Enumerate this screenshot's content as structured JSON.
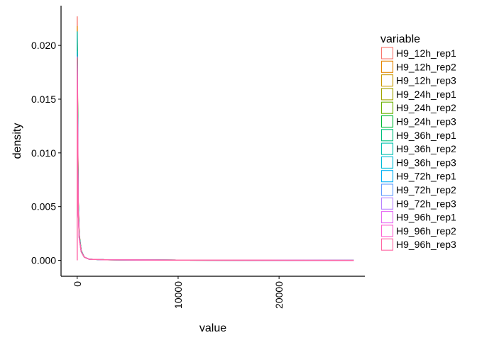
{
  "chart_data": {
    "type": "line",
    "title": "",
    "xlabel": "value",
    "ylabel": "density",
    "xlim": [
      -1600,
      28500
    ],
    "ylim": [
      -0.00148,
      0.0237
    ],
    "x_ticks": [
      0,
      10000,
      20000
    ],
    "x_tick_labels": [
      "0",
      "10000",
      "20000"
    ],
    "y_ticks": [
      0.0,
      0.005,
      0.01,
      0.015,
      0.02
    ],
    "y_tick_labels": [
      "0.000",
      "0.005",
      "0.010",
      "0.015",
      "0.020"
    ],
    "grid": false,
    "legend_position": "right",
    "legend_title": "variable",
    "series": [
      {
        "name": "H9_12h_rep1",
        "color": "#F8766D",
        "points": [
          [
            0,
            0
          ],
          [
            0,
            0.0227
          ],
          [
            100,
            0.006
          ],
          [
            200,
            0.0025
          ],
          [
            400,
            0.0009
          ],
          [
            700,
            0.0003
          ],
          [
            1200,
            0.0001
          ],
          [
            3000,
            5e-05
          ],
          [
            10000,
            2e-05
          ],
          [
            20000,
            1e-05
          ],
          [
            27400,
            0
          ]
        ]
      },
      {
        "name": "H9_12h_rep2",
        "color": "#E58700",
        "points": [
          [
            0,
            0
          ],
          [
            0,
            0.0218
          ],
          [
            100,
            0.0058
          ],
          [
            200,
            0.0024
          ],
          [
            400,
            0.0009
          ],
          [
            700,
            0.0003
          ],
          [
            1200,
            0.0001
          ],
          [
            3000,
            5e-05
          ],
          [
            10000,
            2e-05
          ],
          [
            20000,
            1e-05
          ],
          [
            27400,
            0
          ]
        ]
      },
      {
        "name": "H9_12h_rep3",
        "color": "#C99800",
        "points": [
          [
            0,
            0
          ],
          [
            0,
            0.0212
          ],
          [
            100,
            0.0056
          ],
          [
            200,
            0.0024
          ],
          [
            400,
            0.0009
          ],
          [
            700,
            0.0003
          ],
          [
            1200,
            0.0001
          ],
          [
            3000,
            5e-05
          ],
          [
            10000,
            2e-05
          ],
          [
            20000,
            1e-05
          ],
          [
            27400,
            0
          ]
        ]
      },
      {
        "name": "H9_24h_rep1",
        "color": "#A3A500",
        "points": [
          [
            0,
            0
          ],
          [
            0,
            0.0208
          ],
          [
            100,
            0.0055
          ],
          [
            200,
            0.0023
          ],
          [
            400,
            0.0009
          ],
          [
            700,
            0.0003
          ],
          [
            1200,
            0.0001
          ],
          [
            3000,
            5e-05
          ],
          [
            10000,
            2e-05
          ],
          [
            20000,
            1e-05
          ],
          [
            27400,
            0
          ]
        ]
      },
      {
        "name": "H9_24h_rep2",
        "color": "#6BB100",
        "points": [
          [
            0,
            0
          ],
          [
            0,
            0.0205
          ],
          [
            100,
            0.0054
          ],
          [
            200,
            0.0023
          ],
          [
            400,
            0.0008
          ],
          [
            700,
            0.0003
          ],
          [
            1200,
            0.0001
          ],
          [
            3000,
            5e-05
          ],
          [
            10000,
            2e-05
          ],
          [
            20000,
            1e-05
          ],
          [
            27400,
            0
          ]
        ]
      },
      {
        "name": "H9_24h_rep3",
        "color": "#00BA38",
        "points": [
          [
            0,
            0
          ],
          [
            0,
            0.0207
          ],
          [
            100,
            0.0055
          ],
          [
            200,
            0.0023
          ],
          [
            400,
            0.0008
          ],
          [
            700,
            0.0003
          ],
          [
            1200,
            0.0001
          ],
          [
            3000,
            5e-05
          ],
          [
            10000,
            2e-05
          ],
          [
            20000,
            1e-05
          ],
          [
            27400,
            0
          ]
        ]
      },
      {
        "name": "H9_36h_rep1",
        "color": "#00BF7D",
        "points": [
          [
            0,
            0
          ],
          [
            0,
            0.021
          ],
          [
            100,
            0.0056
          ],
          [
            200,
            0.0023
          ],
          [
            400,
            0.0009
          ],
          [
            700,
            0.0003
          ],
          [
            1200,
            0.0001
          ],
          [
            3000,
            5e-05
          ],
          [
            10000,
            2e-05
          ],
          [
            20000,
            1e-05
          ],
          [
            27400,
            0
          ]
        ]
      },
      {
        "name": "H9_36h_rep2",
        "color": "#00C0AF",
        "points": [
          [
            0,
            0
          ],
          [
            0,
            0.0213
          ],
          [
            100,
            0.0057
          ],
          [
            200,
            0.0024
          ],
          [
            400,
            0.0009
          ],
          [
            700,
            0.0003
          ],
          [
            1200,
            0.0001
          ],
          [
            3000,
            5e-05
          ],
          [
            10000,
            2e-05
          ],
          [
            20000,
            1e-05
          ],
          [
            27400,
            0
          ]
        ]
      },
      {
        "name": "H9_36h_rep3",
        "color": "#00BCD8",
        "points": [
          [
            0,
            0
          ],
          [
            0,
            0.0195
          ],
          [
            100,
            0.0052
          ],
          [
            200,
            0.0022
          ],
          [
            400,
            0.0008
          ],
          [
            700,
            0.0003
          ],
          [
            1200,
            0.0001
          ],
          [
            3000,
            5e-05
          ],
          [
            10000,
            2e-05
          ],
          [
            20000,
            1e-05
          ],
          [
            27400,
            0
          ]
        ]
      },
      {
        "name": "H9_72h_rep1",
        "color": "#00B0F6",
        "points": [
          [
            0,
            0
          ],
          [
            0,
            0.0192
          ],
          [
            100,
            0.0051
          ],
          [
            200,
            0.0022
          ],
          [
            400,
            0.0008
          ],
          [
            700,
            0.0003
          ],
          [
            1200,
            0.0001
          ],
          [
            3000,
            5e-05
          ],
          [
            10000,
            2e-05
          ],
          [
            20000,
            1e-05
          ],
          [
            27400,
            0
          ]
        ]
      },
      {
        "name": "H9_72h_rep2",
        "color": "#619CFF",
        "points": [
          [
            0,
            0
          ],
          [
            0,
            0.019
          ],
          [
            100,
            0.005
          ],
          [
            200,
            0.0021
          ],
          [
            400,
            0.0008
          ],
          [
            700,
            0.0003
          ],
          [
            1200,
            0.0001
          ],
          [
            3000,
            5e-05
          ],
          [
            10000,
            2e-05
          ],
          [
            20000,
            1e-05
          ],
          [
            27400,
            0
          ]
        ]
      },
      {
        "name": "H9_72h_rep3",
        "color": "#B983FF",
        "points": [
          [
            0,
            0
          ],
          [
            0,
            0.0189
          ],
          [
            100,
            0.005
          ],
          [
            200,
            0.0021
          ],
          [
            400,
            0.0008
          ],
          [
            700,
            0.0003
          ],
          [
            1200,
            0.0001
          ],
          [
            3000,
            5e-05
          ],
          [
            10000,
            2e-05
          ],
          [
            20000,
            1e-05
          ],
          [
            27400,
            0
          ]
        ]
      },
      {
        "name": "H9_96h_rep1",
        "color": "#E76BF3",
        "points": [
          [
            0,
            0
          ],
          [
            0,
            0.0188
          ],
          [
            100,
            0.0049
          ],
          [
            200,
            0.0021
          ],
          [
            400,
            0.0008
          ],
          [
            700,
            0.0003
          ],
          [
            1200,
            0.0001
          ],
          [
            3000,
            5e-05
          ],
          [
            10000,
            2e-05
          ],
          [
            20000,
            1e-05
          ],
          [
            27400,
            0
          ]
        ]
      },
      {
        "name": "H9_96h_rep2",
        "color": "#FD61D1",
        "points": [
          [
            0,
            0
          ],
          [
            0,
            0.0189
          ],
          [
            100,
            0.005
          ],
          [
            200,
            0.0021
          ],
          [
            400,
            0.0008
          ],
          [
            700,
            0.0003
          ],
          [
            1200,
            0.0001
          ],
          [
            3000,
            5e-05
          ],
          [
            10000,
            2e-05
          ],
          [
            20000,
            1e-05
          ],
          [
            27400,
            0
          ]
        ]
      },
      {
        "name": "H9_96h_rep3",
        "color": "#FF67A4",
        "points": [
          [
            0,
            0
          ],
          [
            0,
            0.0188
          ],
          [
            100,
            0.0049
          ],
          [
            200,
            0.0021
          ],
          [
            400,
            0.0008
          ],
          [
            700,
            0.0003
          ],
          [
            1200,
            0.0001
          ],
          [
            3000,
            5e-05
          ],
          [
            10000,
            2e-05
          ],
          [
            20000,
            1e-05
          ],
          [
            27400,
            0
          ]
        ]
      }
    ]
  }
}
